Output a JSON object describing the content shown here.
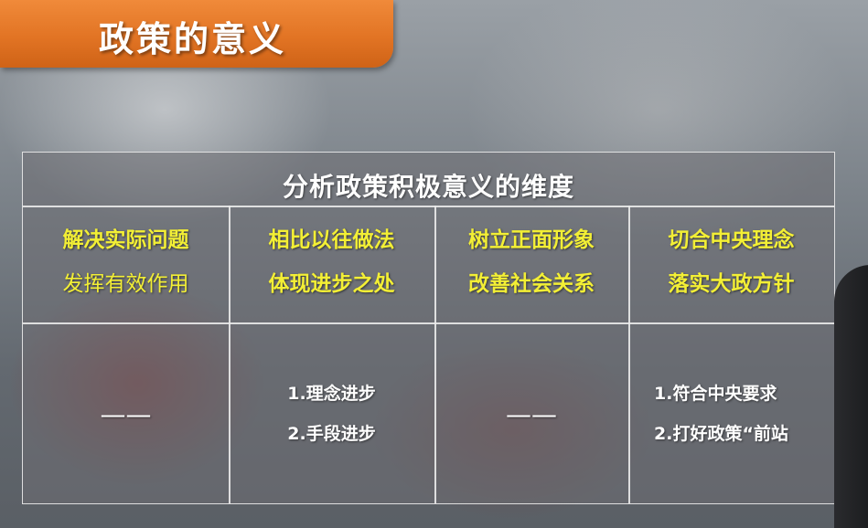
{
  "slide_title": "政策的意义",
  "table": {
    "title": "分析政策积极意义的维度",
    "columns": [
      {
        "line1": "解决实际问题",
        "line2": "发挥有效作用",
        "items": [],
        "empty_mark": "——"
      },
      {
        "line1": "相比以往做法",
        "line2": "体现进步之处",
        "items": [
          "1.理念进步",
          "2.手段进步"
        ],
        "empty_mark": ""
      },
      {
        "line1": "树立正面形象",
        "line2": "改善社会关系",
        "items": [],
        "empty_mark": "——"
      },
      {
        "line1": "切合中央理念",
        "line2": "落实大政方针",
        "items": [
          "1.符合中央要求",
          "2.打好政策“前站"
        ],
        "empty_mark": ""
      }
    ]
  },
  "colors": {
    "title_tab": "#e27424",
    "header_text": "#f3ef35",
    "body_text": "#ffffff",
    "grid_line": "#ebebeb"
  }
}
